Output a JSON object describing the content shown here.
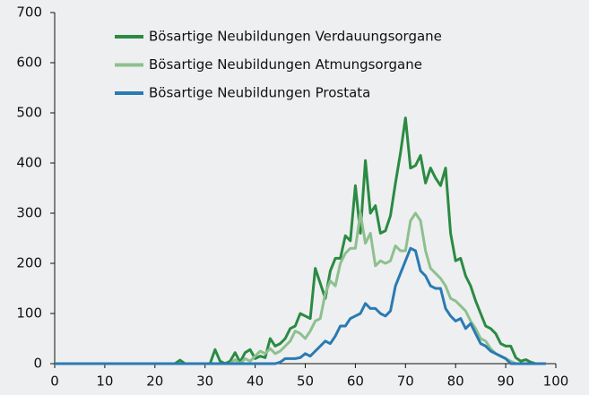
{
  "chart_data": {
    "type": "line",
    "x": [
      0,
      1,
      2,
      3,
      4,
      5,
      6,
      7,
      8,
      9,
      10,
      11,
      12,
      13,
      14,
      15,
      16,
      17,
      18,
      19,
      20,
      21,
      22,
      23,
      24,
      25,
      26,
      27,
      28,
      29,
      30,
      31,
      32,
      33,
      34,
      35,
      36,
      37,
      38,
      39,
      40,
      41,
      42,
      43,
      44,
      45,
      46,
      47,
      48,
      49,
      50,
      51,
      52,
      53,
      54,
      55,
      56,
      57,
      58,
      59,
      60,
      61,
      62,
      63,
      64,
      65,
      66,
      67,
      68,
      69,
      70,
      71,
      72,
      73,
      74,
      75,
      76,
      77,
      78,
      79,
      80,
      81,
      82,
      83,
      84,
      85,
      86,
      87,
      88,
      89,
      90,
      91,
      92,
      93,
      94,
      95,
      96,
      97,
      98
    ],
    "series": [
      {
        "name": "Bösartige Neubildungen Verdauungsorgane",
        "color": "#2b8a43",
        "values": [
          0,
          0,
          0,
          0,
          0,
          0,
          0,
          0,
          0,
          0,
          0,
          0,
          0,
          0,
          0,
          0,
          0,
          0,
          0,
          0,
          0,
          0,
          0,
          0,
          0,
          7,
          0,
          0,
          0,
          0,
          0,
          0,
          28,
          5,
          0,
          5,
          22,
          3,
          22,
          28,
          10,
          15,
          12,
          50,
          35,
          40,
          50,
          70,
          75,
          100,
          95,
          90,
          190,
          160,
          130,
          185,
          210,
          210,
          255,
          245,
          355,
          260,
          405,
          300,
          315,
          260,
          265,
          295,
          360,
          420,
          490,
          390,
          395,
          415,
          360,
          390,
          370,
          355,
          390,
          260,
          205,
          210,
          175,
          155,
          125,
          100,
          75,
          70,
          60,
          40,
          35,
          35,
          12,
          5,
          8,
          3,
          0,
          0,
          0
        ]
      },
      {
        "name": "Bösartige Neubildungen Atmungsorgane",
        "color": "#8dc08f",
        "values": [
          0,
          0,
          0,
          0,
          0,
          0,
          0,
          0,
          0,
          0,
          0,
          0,
          0,
          0,
          0,
          0,
          0,
          0,
          0,
          0,
          0,
          0,
          0,
          0,
          0,
          0,
          0,
          0,
          0,
          0,
          0,
          0,
          0,
          0,
          0,
          0,
          8,
          0,
          10,
          5,
          15,
          25,
          20,
          30,
          20,
          25,
          35,
          45,
          65,
          60,
          50,
          65,
          85,
          90,
          140,
          165,
          155,
          200,
          220,
          230,
          230,
          300,
          240,
          260,
          195,
          205,
          200,
          205,
          235,
          225,
          225,
          285,
          300,
          285,
          225,
          190,
          180,
          170,
          155,
          130,
          125,
          115,
          105,
          85,
          70,
          50,
          45,
          30,
          20,
          15,
          10,
          5,
          0,
          0,
          0,
          0,
          0,
          0,
          0
        ]
      },
      {
        "name": "Bösartige Neubildungen Prostata",
        "color": "#2a7ab3",
        "values": [
          0,
          0,
          0,
          0,
          0,
          0,
          0,
          0,
          0,
          0,
          0,
          0,
          0,
          0,
          0,
          0,
          0,
          0,
          0,
          0,
          0,
          0,
          0,
          0,
          0,
          0,
          0,
          0,
          0,
          0,
          0,
          0,
          0,
          0,
          0,
          0,
          0,
          0,
          0,
          0,
          0,
          0,
          0,
          0,
          0,
          3,
          10,
          10,
          10,
          12,
          20,
          15,
          25,
          35,
          45,
          40,
          55,
          75,
          75,
          90,
          95,
          100,
          120,
          110,
          110,
          100,
          95,
          105,
          155,
          180,
          205,
          230,
          225,
          185,
          175,
          155,
          150,
          150,
          110,
          95,
          85,
          90,
          70,
          80,
          60,
          40,
          35,
          25,
          20,
          15,
          10,
          0,
          0,
          0,
          0,
          0,
          0,
          0,
          0
        ]
      }
    ],
    "xlim": [
      0,
      100
    ],
    "xticks": [
      0,
      10,
      20,
      30,
      40,
      50,
      60,
      70,
      80,
      90,
      100
    ],
    "ylim": [
      0,
      700
    ],
    "yticks": [
      0,
      100,
      200,
      300,
      400,
      500,
      600,
      700
    ],
    "grid": false,
    "legend": "top"
  }
}
